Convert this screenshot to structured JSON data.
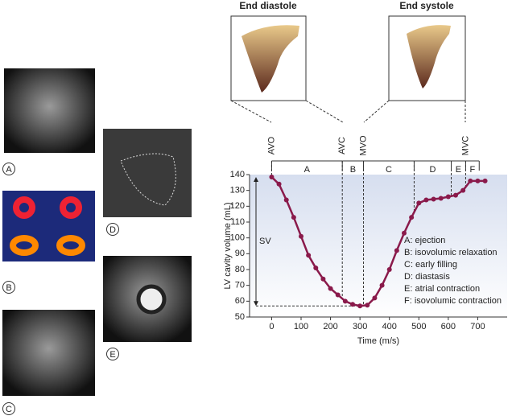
{
  "panels": [
    "A",
    "B",
    "C",
    "D",
    "E"
  ],
  "chart_data": {
    "type": "line",
    "headers": [
      "End diastole",
      "End systole"
    ],
    "xlabel": "Time (m/s)",
    "ylabel": "LV cavity volume (mL)",
    "x": [
      0,
      25,
      50,
      75,
      100,
      125,
      150,
      175,
      200,
      225,
      250,
      275,
      300,
      325,
      350,
      375,
      400,
      425,
      450,
      475,
      500,
      525,
      550,
      575,
      600,
      625,
      650,
      675,
      700,
      725
    ],
    "series": [
      {
        "color": "#8a1a4b",
        "values": [
          138.5,
          134,
          124,
          113,
          101,
          89,
          81,
          74,
          68,
          64,
          60,
          58,
          57,
          57.5,
          62,
          70,
          80,
          92,
          103,
          113,
          122,
          124,
          124.5,
          125,
          126,
          127,
          130,
          136,
          136,
          136
        ]
      }
    ],
    "xlim": [
      -75,
      800
    ],
    "ylim": [
      50,
      140
    ],
    "xticks": [
      0,
      100,
      200,
      300,
      400,
      500,
      600,
      700
    ],
    "yticks": [
      50,
      60,
      70,
      80,
      90,
      100,
      110,
      120,
      130,
      140
    ],
    "events": [
      {
        "label": "AVO",
        "x": 0
      },
      {
        "label": "AVC",
        "x": 240
      },
      {
        "label": "MVO",
        "x": 312
      },
      {
        "label": "MVC",
        "x": 660
      }
    ],
    "phases": [
      {
        "label": "A",
        "start": 0,
        "end": 240
      },
      {
        "label": "B",
        "start": 240,
        "end": 312
      },
      {
        "label": "C",
        "start": 312,
        "end": 484
      },
      {
        "label": "D",
        "start": 484,
        "end": 610
      },
      {
        "label": "E",
        "start": 610,
        "end": 659
      },
      {
        "label": "F",
        "start": 659,
        "end": 705
      }
    ],
    "sv_label": "SV",
    "annotations": [
      "A: ejection",
      "B: isovolumic relaxation",
      "C: early filling",
      "D: diastasis",
      "E: atrial contraction",
      "F: isovolumic contraction"
    ],
    "shade_color": "#dfe6f3"
  }
}
